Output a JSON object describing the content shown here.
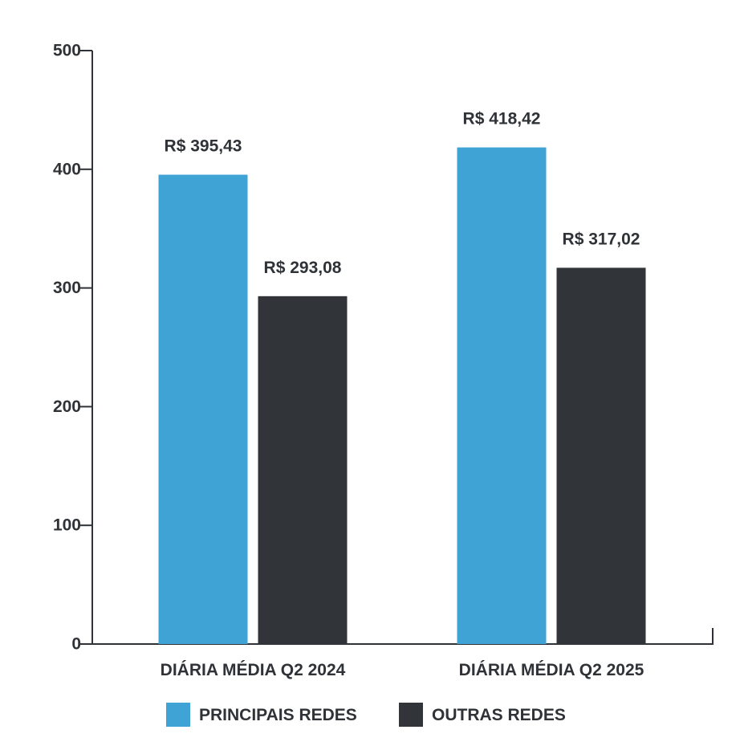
{
  "chart_data": {
    "type": "bar",
    "categories": [
      "DIÁRIA MÉDIA Q2 2024",
      "DIÁRIA MÉDIA Q2 2025"
    ],
    "series": [
      {
        "name": "PRINCIPAIS REDES",
        "color": "#3fa3d6",
        "values": [
          395.43,
          418.42
        ],
        "labels": [
          "R$ 395,43",
          "R$ 418,42"
        ]
      },
      {
        "name": "OUTRAS REDES",
        "color": "#313438",
        "values": [
          293.08,
          317.02
        ],
        "labels": [
          "R$ 293,08",
          "R$ 317,02"
        ]
      }
    ],
    "ylim": [
      0,
      500
    ],
    "yticks": [
      0,
      100,
      200,
      300,
      400,
      500
    ],
    "ytick_labels": [
      "0",
      "100",
      "200",
      "300",
      "400",
      "500"
    ],
    "grid": false,
    "legend_position": "bottom-center",
    "text_color": "#2f3236"
  }
}
